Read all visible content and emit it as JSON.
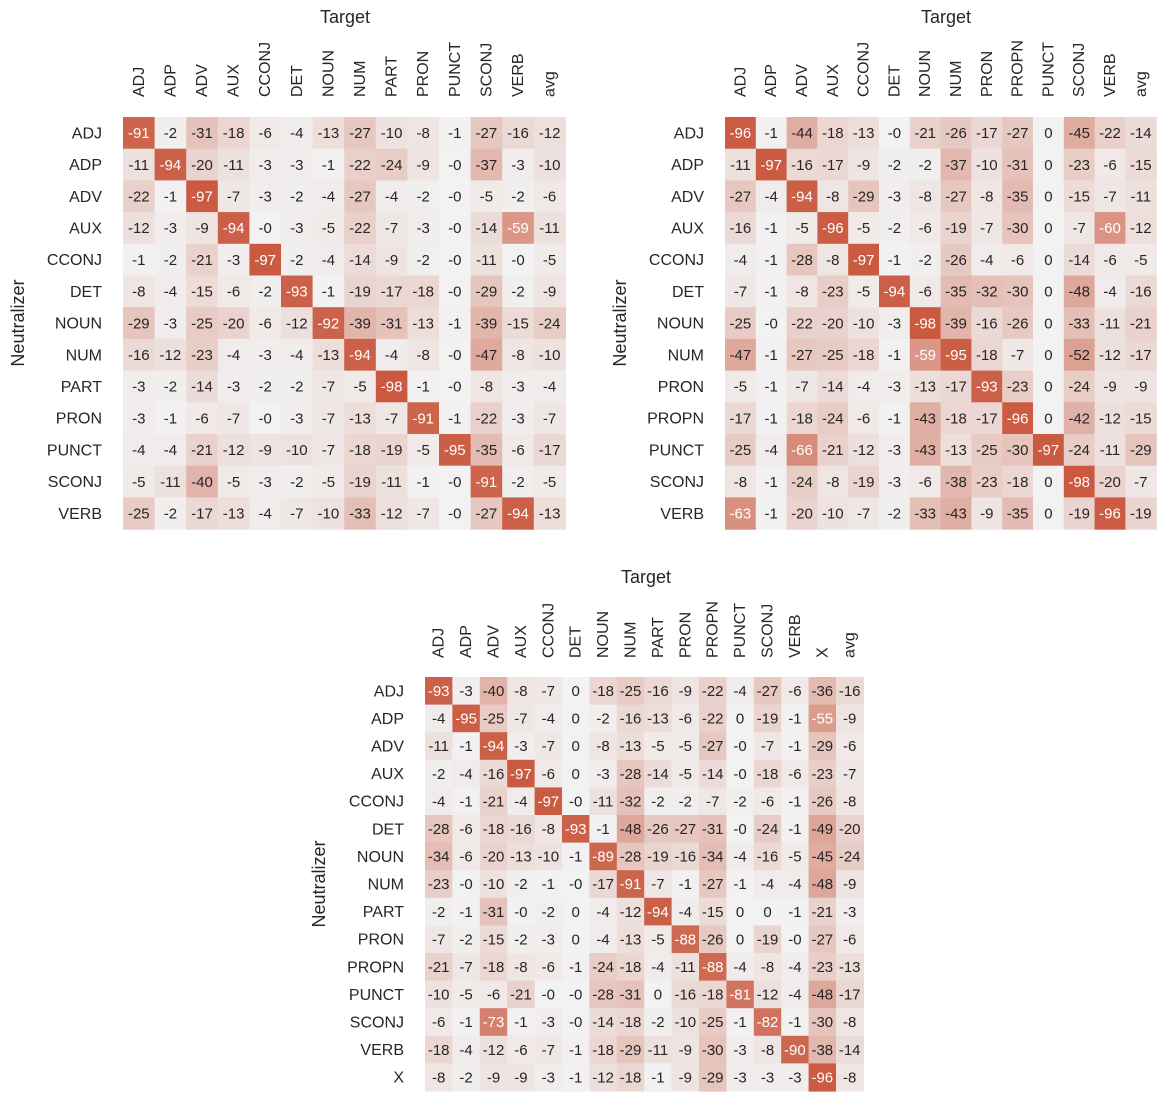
{
  "chart_data": [
    {
      "type": "heatmap",
      "xlabel": "Target",
      "ylabel": "Neutralizer",
      "columns": [
        "ADJ",
        "ADP",
        "ADV",
        "AUX",
        "CCONJ",
        "DET",
        "NOUN",
        "NUM",
        "PART",
        "PRON",
        "PUNCT",
        "SCONJ",
        "VERB",
        "avg"
      ],
      "rows": [
        "ADJ",
        "ADP",
        "ADV",
        "AUX",
        "CCONJ",
        "DET",
        "NOUN",
        "NUM",
        "PART",
        "PRON",
        "PUNCT",
        "SCONJ",
        "VERB"
      ],
      "values": [
        [
          -91,
          -2,
          -31,
          -18,
          -6,
          -4,
          -13,
          -27,
          -10,
          -8,
          -1,
          -27,
          -16,
          -12
        ],
        [
          -11,
          -94,
          -20,
          -11,
          -3,
          -3,
          -1,
          -22,
          -24,
          -9,
          0,
          -37,
          -3,
          -10
        ],
        [
          -22,
          -1,
          -97,
          -7,
          -3,
          -2,
          -4,
          -27,
          -4,
          -2,
          0,
          -5,
          -2,
          -6
        ],
        [
          -12,
          -3,
          -9,
          -94,
          0,
          -3,
          -5,
          -22,
          -7,
          -3,
          0,
          -14,
          -59,
          -11
        ],
        [
          -1,
          -2,
          -21,
          -3,
          -97,
          -2,
          -4,
          -14,
          -9,
          -2,
          0,
          -11,
          0,
          -5
        ],
        [
          -8,
          -4,
          -15,
          -6,
          -2,
          -93,
          -1,
          -19,
          -17,
          -18,
          0,
          -29,
          -2,
          -9
        ],
        [
          -29,
          -3,
          -25,
          -20,
          -6,
          -12,
          -92,
          -39,
          -31,
          -13,
          -1,
          -39,
          -15,
          -24
        ],
        [
          -16,
          -12,
          -23,
          -4,
          -3,
          -4,
          -13,
          -94,
          -4,
          -8,
          0,
          -47,
          -8,
          -10
        ],
        [
          -3,
          -2,
          -14,
          -3,
          -2,
          -2,
          -7,
          -5,
          -98,
          -1,
          0,
          -8,
          -3,
          -4
        ],
        [
          -3,
          -1,
          -6,
          -7,
          0,
          -3,
          -7,
          -13,
          -7,
          -91,
          -1,
          -22,
          -3,
          -7
        ],
        [
          -4,
          -4,
          -21,
          -12,
          -9,
          -10,
          -7,
          -18,
          -19,
          -5,
          -95,
          -35,
          -6,
          -17
        ],
        [
          -5,
          -11,
          -40,
          -5,
          -3,
          -2,
          -5,
          -19,
          -11,
          -1,
          0,
          -91,
          -2,
          -5
        ],
        [
          -25,
          -2,
          -17,
          -13,
          -4,
          -7,
          -10,
          -33,
          -12,
          -7,
          0,
          -27,
          -94,
          -13
        ]
      ]
    },
    {
      "type": "heatmap",
      "xlabel": "Target",
      "ylabel": "Neutralizer",
      "columns": [
        "ADJ",
        "ADP",
        "ADV",
        "AUX",
        "CCONJ",
        "DET",
        "NOUN",
        "NUM",
        "PRON",
        "PROPN",
        "PUNCT",
        "SCONJ",
        "VERB",
        "avg"
      ],
      "rows": [
        "ADJ",
        "ADP",
        "ADV",
        "AUX",
        "CCONJ",
        "DET",
        "NOUN",
        "NUM",
        "PRON",
        "PROPN",
        "PUNCT",
        "SCONJ",
        "VERB"
      ],
      "values": [
        [
          -96,
          -1,
          -44,
          -18,
          -13,
          0,
          -21,
          -26,
          -17,
          -27,
          0,
          -45,
          -22,
          -14
        ],
        [
          -11,
          -97,
          -16,
          -17,
          -9,
          -2,
          -2,
          -37,
          -10,
          -31,
          0,
          -23,
          -6,
          -15
        ],
        [
          -27,
          -4,
          -94,
          -8,
          -29,
          -3,
          -8,
          -27,
          -8,
          -35,
          0,
          -15,
          -7,
          -11
        ],
        [
          -16,
          -1,
          -5,
          -96,
          -5,
          -2,
          -6,
          -19,
          -7,
          -30,
          0,
          -7,
          -60,
          -12
        ],
        [
          -4,
          -1,
          -28,
          -8,
          -97,
          -1,
          -2,
          -26,
          -4,
          -6,
          0,
          -14,
          -6,
          -5
        ],
        [
          -7,
          -1,
          -8,
          -23,
          -5,
          -94,
          -6,
          -35,
          -32,
          -30,
          0,
          -48,
          -4,
          -16
        ],
        [
          -25,
          0,
          -22,
          -20,
          -10,
          -3,
          -98,
          -39,
          -16,
          -26,
          0,
          -33,
          -11,
          -21
        ],
        [
          -47,
          -1,
          -27,
          -25,
          -18,
          -1,
          -59,
          -95,
          -18,
          -7,
          0,
          -52,
          -12,
          -17
        ],
        [
          -5,
          -1,
          -7,
          -14,
          -4,
          -3,
          -13,
          -17,
          -93,
          -23,
          0,
          -24,
          -9,
          -9
        ],
        [
          -17,
          -1,
          -18,
          -24,
          -6,
          -1,
          -43,
          -18,
          -17,
          -96,
          0,
          -42,
          -12,
          -15
        ],
        [
          -25,
          -4,
          -66,
          -21,
          -12,
          -3,
          -43,
          -13,
          -25,
          -30,
          -97,
          -24,
          -11,
          -29
        ],
        [
          -8,
          -1,
          -24,
          -8,
          -19,
          -3,
          -6,
          -38,
          -23,
          -18,
          0,
          -98,
          -20,
          -7
        ],
        [
          -63,
          -1,
          -20,
          -10,
          -7,
          -2,
          -33,
          -43,
          -9,
          -35,
          0,
          -19,
          -96,
          -19
        ]
      ]
    },
    {
      "type": "heatmap",
      "xlabel": "Target",
      "ylabel": "Neutralizer",
      "columns": [
        "ADJ",
        "ADP",
        "ADV",
        "AUX",
        "CCONJ",
        "DET",
        "NOUN",
        "NUM",
        "PART",
        "PRON",
        "PROPN",
        "PUNCT",
        "SCONJ",
        "VERB",
        "X",
        "avg"
      ],
      "rows": [
        "ADJ",
        "ADP",
        "ADV",
        "AUX",
        "CCONJ",
        "DET",
        "NOUN",
        "NUM",
        "PART",
        "PRON",
        "PROPN",
        "PUNCT",
        "SCONJ",
        "VERB",
        "X"
      ],
      "values": [
        [
          -93,
          -3,
          -40,
          -8,
          -7,
          0,
          -18,
          -25,
          -16,
          -9,
          -22,
          -4,
          -27,
          -6,
          -36,
          -16
        ],
        [
          -4,
          -95,
          -25,
          -7,
          -4,
          0,
          -2,
          -16,
          -13,
          -6,
          -22,
          0,
          -19,
          -1,
          -55,
          -9
        ],
        [
          -11,
          -1,
          -94,
          -3,
          -7,
          0,
          -8,
          -13,
          -5,
          -5,
          -27,
          0,
          -7,
          -1,
          -29,
          -6
        ],
        [
          -2,
          -4,
          -16,
          -97,
          -6,
          0,
          -3,
          -28,
          -14,
          -5,
          -14,
          0,
          -18,
          -6,
          -23,
          -7
        ],
        [
          -4,
          -1,
          -21,
          -4,
          -97,
          0,
          -11,
          -32,
          -2,
          -2,
          -7,
          -2,
          -6,
          -1,
          -26,
          -8
        ],
        [
          -28,
          -6,
          -18,
          -16,
          -8,
          -93,
          -1,
          -48,
          -26,
          -27,
          -31,
          0,
          -24,
          -1,
          -49,
          -20
        ],
        [
          -34,
          -6,
          -20,
          -13,
          -10,
          -1,
          -89,
          -28,
          -19,
          -16,
          -34,
          -4,
          -16,
          -5,
          -45,
          -24
        ],
        [
          -23,
          0,
          -10,
          -2,
          -1,
          0,
          -17,
          -91,
          -7,
          -1,
          -27,
          -1,
          -4,
          -4,
          -48,
          -9
        ],
        [
          -2,
          -1,
          -31,
          0,
          -2,
          0,
          -4,
          -12,
          -94,
          -4,
          -15,
          0,
          0,
          -1,
          -21,
          -3
        ],
        [
          -7,
          -2,
          -15,
          -2,
          -3,
          0,
          -4,
          -13,
          -5,
          -88,
          -26,
          0,
          -19,
          0,
          -27,
          -6
        ],
        [
          -21,
          -7,
          -18,
          -8,
          -6,
          -1,
          -24,
          -18,
          -4,
          -11,
          -88,
          -4,
          -8,
          -4,
          -23,
          -13
        ],
        [
          -10,
          -5,
          -6,
          -21,
          0,
          0,
          -28,
          -31,
          0,
          -16,
          -18,
          -81,
          -12,
          -4,
          -48,
          -17
        ],
        [
          -6,
          -1,
          -73,
          -1,
          -3,
          0,
          -14,
          -18,
          -2,
          -10,
          -25,
          -1,
          -82,
          -1,
          -30,
          -8
        ],
        [
          -18,
          -4,
          -12,
          -6,
          -7,
          -1,
          -18,
          -29,
          -11,
          -9,
          -30,
          -3,
          -8,
          -90,
          -38,
          -14
        ],
        [
          -8,
          -2,
          -9,
          -9,
          -3,
          -1,
          -12,
          -18,
          -1,
          -9,
          -29,
          -3,
          -3,
          -3,
          -96,
          -8
        ]
      ]
    }
  ]
}
